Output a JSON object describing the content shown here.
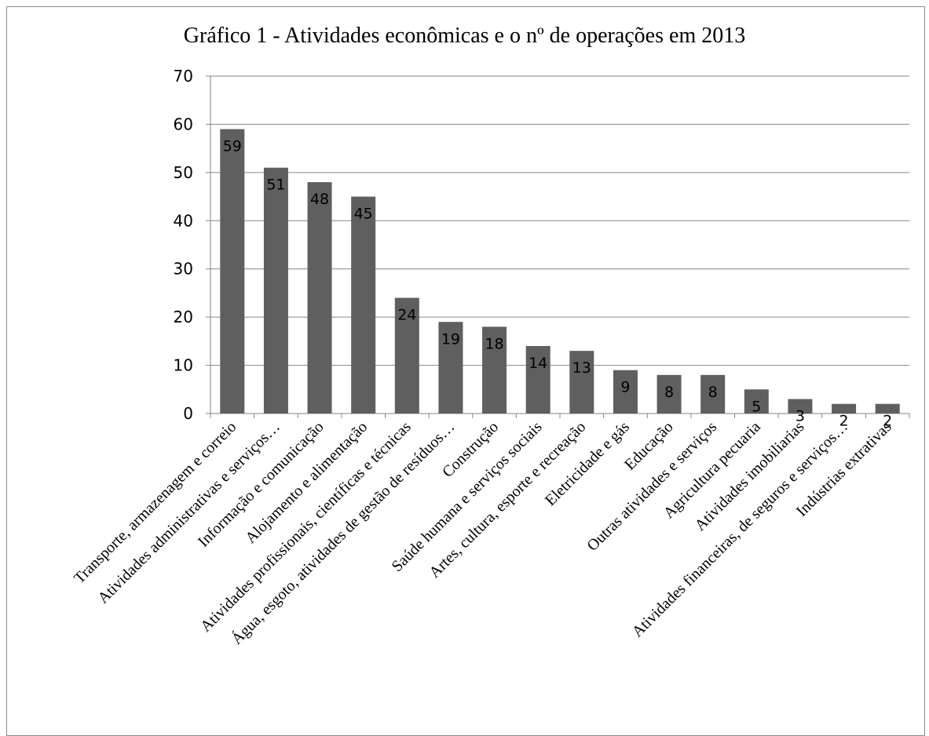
{
  "chart_data": {
    "type": "bar",
    "title": "Gráfico 1 - Atividades econômicas e o nº de operações em 2013",
    "categories": [
      "Transporte, armazenagem e correio",
      "Atividades administrativas e serviços…",
      "Informação e comunicação",
      "Alojamento e alimentação",
      "Atividades profissionais, científicas e técnicas",
      "Água, esgoto, atividades de gestão de resíduos…",
      "Construção",
      "Saúde humana e serviços sociais",
      "Artes, cultura, esporte e recreação",
      "Eletricidade e gás",
      "Educação",
      "Outras atividades e serviços",
      "Agricultura pecuaria",
      "Atividades imobiliarias",
      "Atividades financeiras, de seguros e serviços…",
      "Indústrias extrativas"
    ],
    "values": [
      59,
      51,
      48,
      45,
      24,
      19,
      18,
      14,
      13,
      9,
      8,
      8,
      5,
      3,
      2,
      2
    ],
    "ylim": [
      0,
      70
    ],
    "yticks": [
      0,
      10,
      20,
      30,
      40,
      50,
      60,
      70
    ],
    "grid": true,
    "legend": "none",
    "colors": {
      "bar": "#5f5f5f",
      "grid": "#868686"
    }
  }
}
